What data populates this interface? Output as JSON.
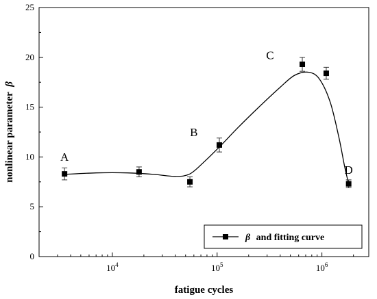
{
  "chart_data": {
    "type": "scatter",
    "xlabel": "fatigue cycles",
    "ylabel_main": "nonlinear parameter",
    "ylabel_symbol": "β",
    "xscale": "log",
    "xlim": [
      2000,
      2800000
    ],
    "ylim": [
      0,
      25
    ],
    "yticks": [
      0,
      5,
      10,
      15,
      20,
      25
    ],
    "xticks": [
      {
        "value": 10000,
        "base": "10",
        "exp": "4"
      },
      {
        "value": 100000,
        "base": "10",
        "exp": "5"
      },
      {
        "value": 1000000,
        "base": "10",
        "exp": "6"
      }
    ],
    "grid": false,
    "series": [
      {
        "name": "β and fitting curve",
        "legend_symbol": "β",
        "legend_suffix": "and fitting curve",
        "points": [
          {
            "x": 3500,
            "y": 8.3,
            "err": 0.6
          },
          {
            "x": 18000,
            "y": 8.5,
            "err": 0.5
          },
          {
            "x": 55000,
            "y": 7.5,
            "err": 0.5
          },
          {
            "x": 105000,
            "y": 11.2,
            "err": 0.7
          },
          {
            "x": 650000,
            "y": 19.3,
            "err": 0.7
          },
          {
            "x": 1100000,
            "y": 18.4,
            "err": 0.6
          },
          {
            "x": 1800000,
            "y": 7.3,
            "err": 0.4
          }
        ],
        "fit_curve": [
          {
            "x": 3500,
            "y": 8.25
          },
          {
            "x": 7000,
            "y": 8.4
          },
          {
            "x": 14000,
            "y": 8.4
          },
          {
            "x": 25000,
            "y": 8.25
          },
          {
            "x": 40000,
            "y": 8.05
          },
          {
            "x": 55000,
            "y": 8.3
          },
          {
            "x": 75000,
            "y": 9.5
          },
          {
            "x": 105000,
            "y": 11.0
          },
          {
            "x": 160000,
            "y": 13.0
          },
          {
            "x": 250000,
            "y": 15.0
          },
          {
            "x": 400000,
            "y": 17.0
          },
          {
            "x": 550000,
            "y": 18.2
          },
          {
            "x": 750000,
            "y": 18.5
          },
          {
            "x": 950000,
            "y": 17.8
          },
          {
            "x": 1200000,
            "y": 15.5
          },
          {
            "x": 1450000,
            "y": 12.0
          },
          {
            "x": 1650000,
            "y": 9.0
          },
          {
            "x": 1800000,
            "y": 7.3
          }
        ]
      }
    ],
    "annotations": [
      {
        "text": "A",
        "x": 3500,
        "y": 9.6
      },
      {
        "text": "B",
        "x": 60000,
        "y": 12.1
      },
      {
        "text": "C",
        "x": 320000,
        "y": 19.8
      },
      {
        "text": "D",
        "x": 1800000,
        "y": 8.3
      }
    ],
    "legend": {
      "placement": "bottom-right"
    }
  }
}
